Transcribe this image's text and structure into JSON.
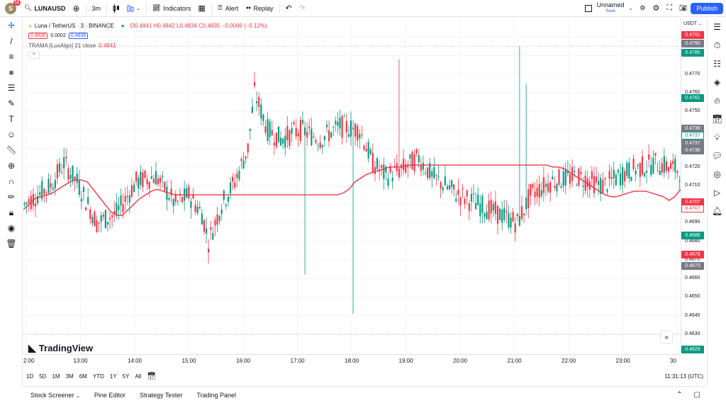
{
  "topbar": {
    "avatar_letter": "S",
    "avatar_badge": "11",
    "symbol": "LUNAUSD",
    "interval": "3m",
    "indicators_label": "Indicators",
    "alert_label": "Alert",
    "replay_label": "Replay",
    "layout_name": "Unnamed",
    "save_status": "Save",
    "publish_label": "Publish"
  },
  "legend": {
    "title": "Luna / TetherUS · 3 · BINANCE",
    "ohlc": "O0.4841 H0.4842 L0.4834 C0.4835 −0.0006 (−0.12%)",
    "bid": "0.4836",
    "spread": "0.0002",
    "ask": "0.4838",
    "indicator": "TRAMA [LuxAlgo] 21 close",
    "indicator_value": "0.4841"
  },
  "price_axis": {
    "currency": "USDT",
    "labels": [
      "0.4790",
      "0.4780",
      "0.4770",
      "0.4760",
      "0.4750",
      "0.4740",
      "0.4730",
      "0.4720",
      "0.4710",
      "0.4700",
      "0.4690",
      "0.4680",
      "0.4670",
      "0.4660",
      "0.4650",
      "0.4640",
      "0.4630"
    ],
    "tags": [
      {
        "text": "0.4791",
        "color": "#f23645"
      },
      {
        "text": "0.4790",
        "color": "#787b86"
      },
      {
        "text": "0.4785",
        "color": "#089981"
      },
      {
        "text": "0.4761",
        "color": "#089981"
      },
      {
        "text": "0.4738",
        "color": "#787b86"
      },
      {
        "text": "0.4737",
        "color": "#ffffff"
      },
      {
        "text": "0.4737",
        "color": "#787b86"
      },
      {
        "text": "0.4736",
        "color": "#787b86"
      },
      {
        "text": "0.4707",
        "color": "#f23645"
      },
      {
        "text": "0.4707",
        "color": "#ffffff"
      },
      {
        "text": "0.4689",
        "color": "#089981"
      },
      {
        "text": "0.4679",
        "color": "#f23645"
      },
      {
        "text": "0.4673",
        "color": "#787b86"
      },
      {
        "text": "0.4629",
        "color": "#089981"
      }
    ]
  },
  "time_axis": {
    "labels": [
      "2:00",
      "13:00",
      "14:00",
      "15:00",
      "16:00",
      "17:00",
      "18:00",
      "19:00",
      "20:00",
      "21:00",
      "22:00",
      "23:00",
      "30"
    ]
  },
  "range_bar": {
    "ranges": [
      "1D",
      "5D",
      "1M",
      "3M",
      "6M",
      "YTD",
      "1Y",
      "5Y",
      "All"
    ],
    "clock": "11:31:13 (UTC)"
  },
  "bottom_bar": {
    "tabs": [
      "Stock Screener",
      "Pine Editor",
      "Strategy Tester",
      "Trading Panel"
    ]
  },
  "brand": "TradingView",
  "colors": {
    "up": "#089981",
    "down": "#f23645",
    "trama": "#f23645",
    "accent": "#2962ff"
  },
  "chart_data": {
    "type": "candlestick",
    "ylim": [
      0.4625,
      0.4795
    ],
    "trama": [
      0.4697,
      0.47,
      0.4703,
      0.4704,
      0.4705,
      0.4706,
      0.4708,
      0.471,
      0.4712,
      0.4713,
      0.4713,
      0.4712,
      0.4708,
      0.4704,
      0.47,
      0.4696,
      0.4694,
      0.4694,
      0.4697,
      0.47,
      0.4703,
      0.4705,
      0.4707,
      0.4708,
      0.4707,
      0.4706,
      0.4705,
      0.4705,
      0.4705,
      0.4705,
      0.4705,
      0.4705,
      0.4705,
      0.4705,
      0.4705,
      0.4705,
      0.4705,
      0.4705,
      0.4705,
      0.4705,
      0.4705,
      0.4705,
      0.4705,
      0.4705,
      0.4705,
      0.4705,
      0.4705,
      0.4705,
      0.4705,
      0.4705,
      0.4705,
      0.4705,
      0.4705,
      0.4705,
      0.4705,
      0.4706,
      0.4708,
      0.4712,
      0.4714,
      0.4716,
      0.4717,
      0.4718,
      0.4719,
      0.472,
      0.472,
      0.472,
      0.4721,
      0.4721,
      0.4721,
      0.4721,
      0.4721,
      0.4721,
      0.4721,
      0.4721,
      0.4721,
      0.4721,
      0.4721,
      0.4721,
      0.4721,
      0.4721,
      0.4721,
      0.4721,
      0.4721,
      0.4721,
      0.4721,
      0.4721,
      0.4721,
      0.4721,
      0.4721,
      0.4721,
      0.4721,
      0.472,
      0.472,
      0.4719,
      0.4717,
      0.4715,
      0.4713,
      0.4711,
      0.4709,
      0.4707,
      0.4705,
      0.4704,
      0.4704,
      0.4705,
      0.4706,
      0.4707,
      0.4707,
      0.4707,
      0.4706,
      0.4705,
      0.4704,
      0.4702,
      0.4704,
      0.4708
    ],
    "candles_note": "approximate OHLC series drawn from screenshot"
  }
}
